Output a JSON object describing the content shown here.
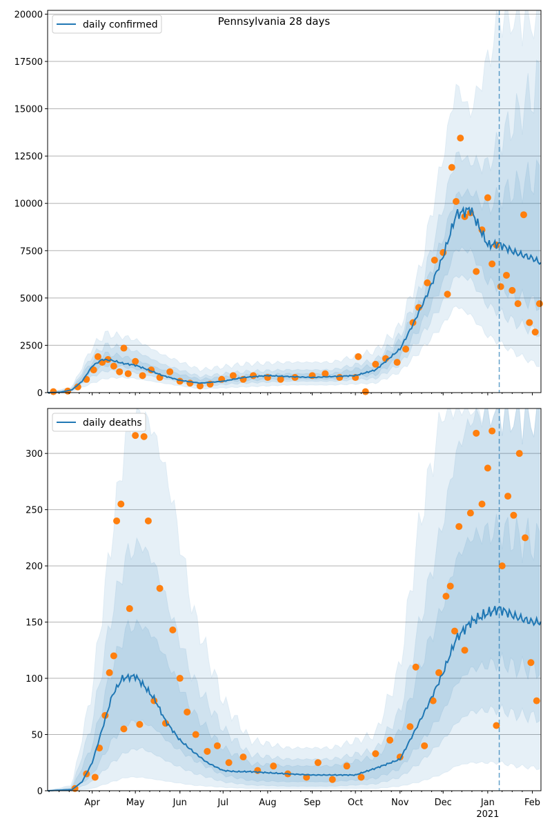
{
  "figure_title": "Pennsylvania 28 days",
  "colors": {
    "line": "#1f77b4",
    "points": "#ff7f0e",
    "band": "#1f77b4",
    "grid": "#b0b0b0",
    "forecast_marker": "#1f77b4"
  },
  "chart_data": [
    {
      "type": "line",
      "title": "Pennsylvania 28 days",
      "legend": {
        "label": "daily confirmed",
        "placement": "top-left"
      },
      "xlabel": "",
      "ylabel": "",
      "xlim": [
        "2020-03-01",
        "2021-02-07"
      ],
      "ylim": [
        0,
        20200
      ],
      "grid": "y",
      "yticks": [
        0,
        2500,
        5000,
        7500,
        10000,
        12500,
        15000,
        17500,
        20000
      ],
      "forecast_start": "2021-01-09",
      "series": [
        {
          "name": "daily confirmed",
          "kind": "line",
          "x": [
            "2020-03-01",
            "2020-03-10",
            "2020-03-18",
            "2020-03-25",
            "2020-04-01",
            "2020-04-08",
            "2020-04-15",
            "2020-04-22",
            "2020-05-01",
            "2020-05-10",
            "2020-05-20",
            "2020-06-01",
            "2020-06-15",
            "2020-07-01",
            "2020-07-15",
            "2020-08-01",
            "2020-08-15",
            "2020-09-01",
            "2020-09-15",
            "2020-10-01",
            "2020-10-15",
            "2020-11-01",
            "2020-11-10",
            "2020-11-20",
            "2020-12-01",
            "2020-12-10",
            "2020-12-20",
            "2021-01-01",
            "2021-01-09",
            "2021-01-20",
            "2021-02-01",
            "2021-02-07"
          ],
          "values": [
            0,
            20,
            150,
            600,
            1400,
            1750,
            1700,
            1550,
            1450,
            1200,
            900,
            650,
            500,
            600,
            800,
            900,
            850,
            800,
            850,
            900,
            1200,
            2300,
            3600,
            5200,
            7200,
            9400,
            9700,
            7800,
            7850,
            7400,
            7100,
            6850
          ]
        },
        {
          "name": "",
          "kind": "points",
          "x": [
            "2020-03-05",
            "2020-03-15",
            "2020-03-22",
            "2020-03-28",
            "2020-04-02",
            "2020-04-05",
            "2020-04-08",
            "2020-04-12",
            "2020-04-16",
            "2020-04-20",
            "2020-04-23",
            "2020-04-26",
            "2020-05-01",
            "2020-05-06",
            "2020-05-12",
            "2020-05-18",
            "2020-05-25",
            "2020-06-01",
            "2020-06-08",
            "2020-06-15",
            "2020-06-22",
            "2020-06-30",
            "2020-07-08",
            "2020-07-15",
            "2020-07-22",
            "2020-08-01",
            "2020-08-10",
            "2020-08-20",
            "2020-09-01",
            "2020-09-10",
            "2020-09-20",
            "2020-10-01",
            "2020-10-03",
            "2020-10-08",
            "2020-10-15",
            "2020-10-22",
            "2020-10-30",
            "2020-11-05",
            "2020-11-10",
            "2020-11-14",
            "2020-11-20",
            "2020-11-25",
            "2020-12-01",
            "2020-12-04",
            "2020-12-07",
            "2020-12-10",
            "2020-12-13",
            "2020-12-16",
            "2020-12-20",
            "2020-12-24",
            "2020-12-28",
            "2021-01-01",
            "2021-01-04",
            "2021-01-07",
            "2021-01-10",
            "2021-01-14",
            "2021-01-18",
            "2021-01-22",
            "2021-01-26",
            "2021-01-30",
            "2021-02-03",
            "2021-02-06"
          ],
          "values": [
            50,
            80,
            300,
            700,
            1200,
            1900,
            1600,
            1750,
            1400,
            1100,
            2350,
            1000,
            1650,
            900,
            1200,
            800,
            1100,
            600,
            500,
            350,
            450,
            700,
            900,
            700,
            900,
            800,
            700,
            800,
            900,
            1000,
            800,
            800,
            1900,
            50,
            1500,
            1800,
            1600,
            2300,
            3700,
            4500,
            5800,
            7000,
            7400,
            5200,
            11900,
            10100,
            13450,
            9300,
            9500,
            6400,
            8600,
            10300,
            6800,
            7800,
            5600,
            6200,
            5400,
            4700,
            9400,
            3700,
            3200,
            4700
          ]
        }
      ],
      "bands": [
        {
          "name": "",
          "x": [
            "2020-03-01",
            "2020-03-18",
            "2020-04-01",
            "2020-04-10",
            "2020-04-20",
            "2020-05-01",
            "2020-05-20",
            "2020-06-15",
            "2020-07-15",
            "2020-08-15",
            "2020-09-15",
            "2020-10-15",
            "2020-11-01",
            "2020-11-15",
            "2020-12-01",
            "2020-12-10",
            "2020-12-20",
            "2021-01-01",
            "2021-01-10",
            "2021-01-20",
            "2021-02-01",
            "2021-02-07"
          ],
          "lower": [
            0,
            50,
            500,
            750,
            800,
            750,
            500,
            200,
            300,
            400,
            400,
            500,
            1100,
            2200,
            3600,
            4600,
            4100,
            3000,
            2600,
            2100,
            1600,
            1400
          ],
          "upper": [
            0,
            300,
            2400,
            3100,
            3000,
            2800,
            2000,
            1200,
            1500,
            1600,
            1600,
            2200,
            3500,
            6500,
            12500,
            16200,
            14800,
            17500,
            20200,
            20200,
            20200,
            20200
          ]
        },
        {
          "name": "",
          "x": [
            "2020-03-01",
            "2020-03-18",
            "2020-04-01",
            "2020-04-10",
            "2020-04-20",
            "2020-05-01",
            "2020-05-20",
            "2020-06-15",
            "2020-07-15",
            "2020-08-15",
            "2020-09-15",
            "2020-10-15",
            "2020-11-01",
            "2020-11-15",
            "2020-12-01",
            "2020-12-10",
            "2020-12-20",
            "2021-01-01",
            "2021-01-10",
            "2021-01-20",
            "2021-02-01",
            "2021-02-07"
          ],
          "lower": [
            0,
            90,
            850,
            1150,
            1150,
            1050,
            750,
            350,
            500,
            600,
            600,
            750,
            1500,
            2900,
            4800,
            6200,
            6000,
            4600,
            4200,
            3700,
            3300,
            3100
          ],
          "upper": [
            0,
            220,
            1950,
            2500,
            2400,
            2200,
            1500,
            850,
            1100,
            1200,
            1200,
            1700,
            3000,
            5400,
            9800,
            12600,
            12200,
            12000,
            13400,
            14500,
            15800,
            16800
          ]
        },
        {
          "name": "",
          "x": [
            "2020-03-01",
            "2020-03-18",
            "2020-04-01",
            "2020-04-10",
            "2020-04-20",
            "2020-05-01",
            "2020-05-20",
            "2020-06-15",
            "2020-07-15",
            "2020-08-15",
            "2020-09-15",
            "2020-10-15",
            "2020-11-01",
            "2020-11-15",
            "2020-12-01",
            "2020-12-10",
            "2020-12-20",
            "2021-01-01",
            "2021-01-10",
            "2021-01-20",
            "2021-02-01",
            "2021-02-07"
          ],
          "lower": [
            0,
            120,
            1150,
            1450,
            1400,
            1250,
            900,
            480,
            650,
            720,
            720,
            950,
            1850,
            3500,
            5800,
            7600,
            7500,
            5900,
            5600,
            5100,
            4800,
            4600
          ],
          "upper": [
            0,
            180,
            1650,
            2050,
            1950,
            1750,
            1200,
            700,
            900,
            1000,
            1000,
            1450,
            2700,
            4700,
            8200,
            10400,
            10600,
            9800,
            10400,
            10800,
            11300,
            11500
          ]
        }
      ]
    },
    {
      "type": "line",
      "title": "",
      "legend": {
        "label": "daily deaths",
        "placement": "top-left"
      },
      "xlabel": "",
      "ylabel": "",
      "xlim": [
        "2020-03-01",
        "2021-02-07"
      ],
      "ylim": [
        0,
        340
      ],
      "grid": "y",
      "yticks": [
        0,
        50,
        100,
        150,
        200,
        250,
        300
      ],
      "xtick_labels": [
        "Apr",
        "May",
        "Jun",
        "Jul",
        "Aug",
        "Sep",
        "Oct",
        "Nov",
        "Dec",
        "Jan",
        "Feb"
      ],
      "year_label": "2021",
      "forecast_start": "2021-01-09",
      "series": [
        {
          "name": "daily deaths",
          "kind": "line",
          "x": [
            "2020-03-01",
            "2020-03-18",
            "2020-03-25",
            "2020-04-01",
            "2020-04-08",
            "2020-04-15",
            "2020-04-22",
            "2020-05-01",
            "2020-05-08",
            "2020-05-15",
            "2020-05-22",
            "2020-06-01",
            "2020-06-10",
            "2020-06-20",
            "2020-07-01",
            "2020-07-10",
            "2020-07-20",
            "2020-08-01",
            "2020-08-15",
            "2020-09-01",
            "2020-09-15",
            "2020-10-01",
            "2020-10-15",
            "2020-11-01",
            "2020-11-10",
            "2020-11-20",
            "2020-12-01",
            "2020-12-10",
            "2020-12-20",
            "2021-01-01",
            "2021-01-09",
            "2021-01-20",
            "2021-02-01",
            "2021-02-07"
          ],
          "values": [
            0,
            1,
            8,
            25,
            55,
            85,
            100,
            102,
            92,
            80,
            62,
            45,
            35,
            25,
            18,
            17,
            17,
            16,
            15,
            14,
            14,
            14,
            20,
            28,
            50,
            75,
            105,
            135,
            150,
            158,
            162,
            155,
            150,
            150
          ]
        },
        {
          "name": "",
          "kind": "points",
          "x": [
            "2020-03-20",
            "2020-03-28",
            "2020-04-03",
            "2020-04-06",
            "2020-04-10",
            "2020-04-13",
            "2020-04-16",
            "2020-04-18",
            "2020-04-21",
            "2020-04-23",
            "2020-04-27",
            "2020-05-01",
            "2020-05-04",
            "2020-05-07",
            "2020-05-10",
            "2020-05-14",
            "2020-05-18",
            "2020-05-22",
            "2020-05-27",
            "2020-06-01",
            "2020-06-06",
            "2020-06-12",
            "2020-06-20",
            "2020-06-27",
            "2020-07-05",
            "2020-07-15",
            "2020-07-25",
            "2020-08-05",
            "2020-08-15",
            "2020-08-28",
            "2020-09-05",
            "2020-09-15",
            "2020-09-25",
            "2020-10-05",
            "2020-10-15",
            "2020-10-25",
            "2020-11-01",
            "2020-11-08",
            "2020-11-12",
            "2020-11-18",
            "2020-11-24",
            "2020-11-28",
            "2020-12-03",
            "2020-12-06",
            "2020-12-09",
            "2020-12-12",
            "2020-12-16",
            "2020-12-20",
            "2020-12-24",
            "2020-12-28",
            "2021-01-01",
            "2021-01-04",
            "2021-01-07",
            "2021-01-11",
            "2021-01-15",
            "2021-01-19",
            "2021-01-23",
            "2021-01-27",
            "2021-01-31",
            "2021-02-04"
          ],
          "values": [
            2,
            15,
            12,
            38,
            67,
            105,
            120,
            240,
            255,
            55,
            162,
            316,
            59,
            315,
            240,
            80,
            180,
            60,
            143,
            100,
            70,
            50,
            35,
            40,
            25,
            30,
            18,
            22,
            15,
            12,
            25,
            10,
            22,
            12,
            33,
            45,
            30,
            57,
            110,
            40,
            80,
            105,
            173,
            182,
            142,
            235,
            125,
            247,
            318,
            255,
            287,
            320,
            58,
            200,
            262,
            245,
            300,
            225,
            114,
            80
          ]
        }
      ],
      "bands": [
        {
          "name": "",
          "x": [
            "2020-03-01",
            "2020-03-18",
            "2020-04-01",
            "2020-04-15",
            "2020-04-25",
            "2020-05-05",
            "2020-05-15",
            "2020-05-25",
            "2020-06-10",
            "2020-07-01",
            "2020-07-20",
            "2020-08-15",
            "2020-09-15",
            "2020-10-15",
            "2020-11-01",
            "2020-11-15",
            "2020-12-01",
            "2020-12-10",
            "2020-12-20",
            "2021-01-01",
            "2021-01-10",
            "2021-01-20",
            "2021-02-07"
          ],
          "lower": [
            0,
            0,
            2,
            8,
            12,
            12,
            10,
            8,
            5,
            3,
            2,
            2,
            2,
            2,
            4,
            8,
            15,
            22,
            25,
            25,
            25,
            22,
            20
          ],
          "upper": [
            0,
            5,
            90,
            230,
            320,
            340,
            315,
            270,
            160,
            80,
            45,
            38,
            38,
            50,
            110,
            240,
            340,
            340,
            340,
            340,
            340,
            340,
            340
          ]
        },
        {
          "name": "",
          "x": [
            "2020-03-01",
            "2020-03-18",
            "2020-04-01",
            "2020-04-15",
            "2020-04-25",
            "2020-05-05",
            "2020-05-15",
            "2020-05-25",
            "2020-06-10",
            "2020-07-01",
            "2020-07-20",
            "2020-08-15",
            "2020-09-15",
            "2020-10-15",
            "2020-11-01",
            "2020-11-15",
            "2020-12-01",
            "2020-12-10",
            "2020-12-20",
            "2021-01-01",
            "2021-01-10",
            "2021-01-20",
            "2021-02-07"
          ],
          "lower": [
            0,
            0,
            8,
            25,
            35,
            38,
            32,
            25,
            16,
            8,
            5,
            4,
            4,
            6,
            12,
            25,
            45,
            60,
            70,
            72,
            72,
            68,
            65
          ],
          "upper": [
            0,
            3,
            60,
            160,
            210,
            220,
            200,
            160,
            100,
            55,
            32,
            28,
            28,
            36,
            70,
            150,
            240,
            300,
            330,
            340,
            340,
            340,
            340
          ]
        },
        {
          "name": "",
          "x": [
            "2020-03-01",
            "2020-03-18",
            "2020-04-01",
            "2020-04-15",
            "2020-04-25",
            "2020-05-05",
            "2020-05-15",
            "2020-05-25",
            "2020-06-10",
            "2020-07-01",
            "2020-07-20",
            "2020-08-15",
            "2020-09-15",
            "2020-10-15",
            "2020-11-01",
            "2020-11-15",
            "2020-12-01",
            "2020-12-10",
            "2020-12-20",
            "2021-01-01",
            "2021-01-10",
            "2021-01-20",
            "2021-02-07"
          ],
          "lower": [
            0,
            0,
            14,
            45,
            60,
            62,
            55,
            42,
            28,
            14,
            9,
            8,
            8,
            11,
            20,
            42,
            70,
            95,
            108,
            112,
            115,
            110,
            108
          ],
          "upper": [
            0,
            2,
            40,
            110,
            145,
            148,
            135,
            110,
            70,
            38,
            24,
            22,
            22,
            30,
            52,
            110,
            165,
            205,
            225,
            230,
            232,
            225,
            220
          ]
        }
      ]
    }
  ]
}
